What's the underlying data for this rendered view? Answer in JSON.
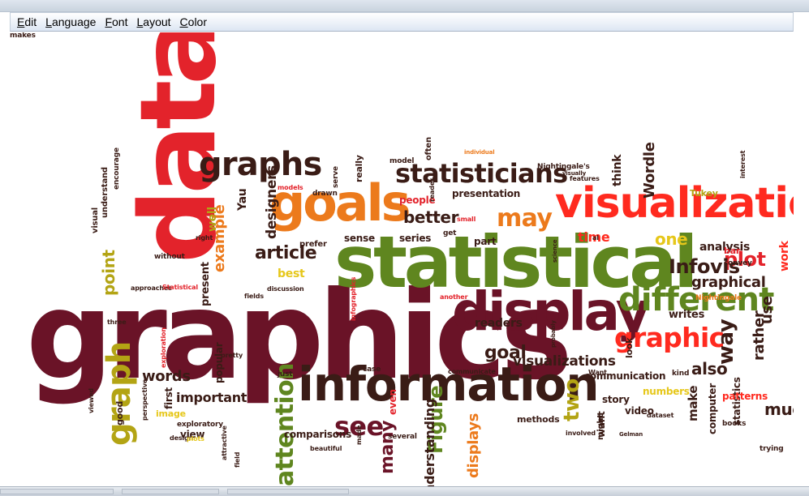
{
  "menu": [
    {
      "label": "Edit",
      "mnemonic": "E",
      "rest": "dit"
    },
    {
      "label": "Language",
      "mnemonic": "L",
      "rest": "anguage"
    },
    {
      "label": "Font",
      "mnemonic": "F",
      "rest": "ont"
    },
    {
      "label": "Layout",
      "mnemonic": "L",
      "rest": "ayout"
    },
    {
      "label": "Color",
      "mnemonic": "C",
      "rest": "olor"
    }
  ],
  "colors": {
    "red": "#e3232b",
    "orange": "#ec7a1c",
    "green": "#5f861f",
    "olive": "#b3a414",
    "dark": "#3a1c16",
    "maroon": "#6a1327",
    "brightred": "#ff2a1f",
    "yellow": "#e6c71a"
  },
  "words": [
    {
      "text": "data",
      "color": "red",
      "size": 128,
      "rot": -90
    },
    {
      "text": "graphics",
      "color": "maroon",
      "size": 150,
      "rot": 0
    },
    {
      "text": "statistical",
      "color": "green",
      "size": 88,
      "rot": 0
    },
    {
      "text": "information",
      "color": "dark",
      "size": 58,
      "rot": 0
    },
    {
      "text": "display",
      "color": "maroon",
      "size": 66,
      "rot": 0
    },
    {
      "text": "visualization",
      "color": "brightred",
      "size": 52,
      "rot": 0
    },
    {
      "text": "goals",
      "color": "orange",
      "size": 62,
      "rot": 0
    },
    {
      "text": "different",
      "color": "green",
      "size": 40,
      "rot": 0
    },
    {
      "text": "statisticians",
      "color": "dark",
      "size": 32,
      "rot": 0
    },
    {
      "text": "graphs",
      "color": "dark",
      "size": 40,
      "rot": 0
    },
    {
      "text": "graphic",
      "color": "brightred",
      "size": 33,
      "rot": 0
    },
    {
      "text": "graph",
      "color": "olive",
      "size": 40,
      "rot": -90
    },
    {
      "text": "may",
      "color": "orange",
      "size": 30,
      "rot": 0
    },
    {
      "text": "see",
      "color": "maroon",
      "size": 32,
      "rot": 0
    },
    {
      "text": "attention",
      "color": "green",
      "size": 30,
      "rot": -90
    },
    {
      "text": "Figure",
      "color": "green",
      "size": 24,
      "rot": -90
    },
    {
      "text": "plot",
      "color": "red",
      "size": 24,
      "rot": 0
    },
    {
      "text": "better",
      "color": "dark",
      "size": 20,
      "rot": 0
    },
    {
      "text": "Infovis",
      "color": "dark",
      "size": 24,
      "rot": 0
    },
    {
      "text": "article",
      "color": "dark",
      "size": 22,
      "rot": 0
    },
    {
      "text": "graphical",
      "color": "dark",
      "size": 18,
      "rot": 0
    },
    {
      "text": "goal",
      "color": "dark",
      "size": 22,
      "rot": 0
    },
    {
      "text": "way",
      "color": "dark",
      "size": 26,
      "rot": -90
    },
    {
      "text": "rather",
      "color": "dark",
      "size": 18,
      "rot": -90
    },
    {
      "text": "much",
      "color": "dark",
      "size": 20,
      "rot": 0
    },
    {
      "text": "also",
      "color": "dark",
      "size": 20,
      "rot": 0
    },
    {
      "text": "visualizations",
      "color": "dark",
      "size": 17,
      "rot": 0
    },
    {
      "text": "words",
      "color": "dark",
      "size": 18,
      "rot": 0
    },
    {
      "text": "important",
      "color": "dark",
      "size": 16,
      "rot": 0
    },
    {
      "text": "designers",
      "color": "dark",
      "size": 17,
      "rot": -90
    },
    {
      "text": "example",
      "color": "orange",
      "size": 18,
      "rot": -90
    },
    {
      "text": "point",
      "color": "olive",
      "size": 20,
      "rot": -90
    },
    {
      "text": "well",
      "color": "olive",
      "size": 14,
      "rot": -90
    },
    {
      "text": "Yau",
      "color": "dark",
      "size": 14,
      "rot": -90
    },
    {
      "text": "Wordle",
      "color": "dark",
      "size": 18,
      "rot": -90
    },
    {
      "text": "think",
      "color": "dark",
      "size": 14,
      "rot": -90
    },
    {
      "text": "time",
      "color": "brightred",
      "size": 16,
      "rot": 0
    },
    {
      "text": "one",
      "color": "yellow",
      "size": 20,
      "rot": 0
    },
    {
      "text": "analysis",
      "color": "dark",
      "size": 14,
      "rot": 0
    },
    {
      "text": "work",
      "color": "brightred",
      "size": 14,
      "rot": -90
    },
    {
      "text": "use",
      "color": "dark",
      "size": 18,
      "rot": -90
    },
    {
      "text": "best",
      "color": "yellow",
      "size": 14,
      "rot": 0
    },
    {
      "text": "present",
      "color": "dark",
      "size": 13,
      "rot": -90
    },
    {
      "text": "readers",
      "color": "dark",
      "size": 14,
      "rot": 0
    },
    {
      "text": "writes",
      "color": "dark",
      "size": 13,
      "rot": 0
    },
    {
      "text": "sense",
      "color": "dark",
      "size": 12,
      "rot": 0
    },
    {
      "text": "series",
      "color": "dark",
      "size": 12,
      "rot": 0
    },
    {
      "text": "part",
      "color": "dark",
      "size": 12,
      "rot": 0
    },
    {
      "text": "presentation",
      "color": "dark",
      "size": 12,
      "rot": 0
    },
    {
      "text": "people",
      "color": "red",
      "size": 12,
      "rot": 0
    },
    {
      "text": "two",
      "color": "olive",
      "size": 26,
      "rot": -90
    },
    {
      "text": "many",
      "color": "maroon",
      "size": 22,
      "rot": -90
    },
    {
      "text": "displays",
      "color": "orange",
      "size": 18,
      "rot": -90
    },
    {
      "text": "understanding",
      "color": "dark",
      "size": 16,
      "rot": -90
    },
    {
      "text": "communication",
      "color": "dark",
      "size": 12,
      "rot": 0
    },
    {
      "text": "make",
      "color": "dark",
      "size": 15,
      "rot": -90
    },
    {
      "text": "computer",
      "color": "dark",
      "size": 12,
      "rot": -90
    },
    {
      "text": "statistics",
      "color": "dark",
      "size": 12,
      "rot": -90
    },
    {
      "text": "patterns",
      "color": "brightred",
      "size": 12,
      "rot": 0
    },
    {
      "text": "story",
      "color": "dark",
      "size": 12,
      "rot": 0
    },
    {
      "text": "video",
      "color": "dark",
      "size": 12,
      "rot": 0
    },
    {
      "text": "numbers",
      "color": "yellow",
      "size": 12,
      "rot": 0
    },
    {
      "text": "want",
      "color": "dark",
      "size": 12,
      "rot": -90
    },
    {
      "text": "methods",
      "color": "dark",
      "size": 11,
      "rot": 0
    },
    {
      "text": "image",
      "color": "yellow",
      "size": 11,
      "rot": 0
    },
    {
      "text": "comparisons",
      "color": "dark",
      "size": 12,
      "rot": 0
    },
    {
      "text": "popular",
      "color": "dark",
      "size": 12,
      "rot": -90
    },
    {
      "text": "view",
      "color": "dark",
      "size": 12,
      "rot": 0
    },
    {
      "text": "first",
      "color": "dark",
      "size": 12,
      "rot": -90
    },
    {
      "text": "good",
      "color": "dark",
      "size": 11,
      "rot": -90
    },
    {
      "text": "visual",
      "color": "dark",
      "size": 10,
      "rot": -90
    },
    {
      "text": "understand",
      "color": "dark",
      "size": 10,
      "rot": -90
    },
    {
      "text": "encourage",
      "color": "dark",
      "size": 9,
      "rot": -90
    },
    {
      "text": "interest",
      "color": "dark",
      "size": 8,
      "rot": -90
    },
    {
      "text": "Tukey",
      "color": "olive",
      "size": 11,
      "rot": 0
    },
    {
      "text": "bar",
      "color": "red",
      "size": 11,
      "rot": 0
    },
    {
      "text": "convey",
      "color": "dark",
      "size": 9,
      "rot": 0
    },
    {
      "text": "features",
      "color": "dark",
      "size": 8,
      "rot": 0
    },
    {
      "text": "Nightingale",
      "color": "orange",
      "size": 9,
      "rot": 0
    },
    {
      "text": "Nightingale's",
      "color": "dark",
      "size": 9,
      "rot": 0
    },
    {
      "text": "prefer",
      "color": "dark",
      "size": 10,
      "rot": 0
    },
    {
      "text": "discussion",
      "color": "dark",
      "size": 8,
      "rot": 0
    },
    {
      "text": "approaches",
      "color": "dark",
      "size": 8,
      "rot": 0
    },
    {
      "text": "Statistical",
      "color": "red",
      "size": 8,
      "rot": 0
    },
    {
      "text": "without",
      "color": "dark",
      "size": 9,
      "rot": 0
    },
    {
      "text": "models",
      "color": "red",
      "size": 8,
      "rot": 0
    },
    {
      "text": "drawn",
      "color": "dark",
      "size": 9,
      "rot": 0
    },
    {
      "text": "serve",
      "color": "dark",
      "size": 9,
      "rot": -90
    },
    {
      "text": "really",
      "color": "dark",
      "size": 11,
      "rot": -90
    },
    {
      "text": "often",
      "color": "dark",
      "size": 10,
      "rot": -90
    },
    {
      "text": "model",
      "color": "dark",
      "size": 9,
      "rot": 0
    },
    {
      "text": "individual",
      "color": "orange",
      "size": 7,
      "rot": 0
    },
    {
      "text": "perspective",
      "color": "dark",
      "size": 8,
      "rot": -90
    },
    {
      "text": "exploratory",
      "color": "dark",
      "size": 9,
      "rot": 0
    },
    {
      "text": "design",
      "color": "dark",
      "size": 8,
      "rot": 0
    },
    {
      "text": "plots",
      "color": "yellow",
      "size": 8,
      "rot": 0
    },
    {
      "text": "just",
      "color": "dark",
      "size": 9,
      "rot": 0
    },
    {
      "text": "exploration",
      "color": "red",
      "size": 8,
      "rot": -90
    },
    {
      "text": "beautiful",
      "color": "dark",
      "size": 8,
      "rot": 0
    },
    {
      "text": "even",
      "color": "red",
      "size": 12,
      "rot": -90
    },
    {
      "text": "case",
      "color": "dark",
      "size": 9,
      "rot": 0
    },
    {
      "text": "several",
      "color": "dark",
      "size": 9,
      "rot": 0
    },
    {
      "text": "communicate",
      "color": "dark",
      "size": 8,
      "rot": 0
    },
    {
      "text": "made",
      "color": "dark",
      "size": 8,
      "rot": -90
    },
    {
      "text": "involved",
      "color": "dark",
      "size": 8,
      "rot": 0
    },
    {
      "text": "books",
      "color": "dark",
      "size": 9,
      "rot": 0
    },
    {
      "text": "trying",
      "color": "dark",
      "size": 9,
      "rot": 0
    },
    {
      "text": "look",
      "color": "dark",
      "size": 11,
      "rot": -90
    },
    {
      "text": "kind",
      "color": "dark",
      "size": 9,
      "rot": 0
    },
    {
      "text": "dataset",
      "color": "dark",
      "size": 8,
      "rot": 0
    },
    {
      "text": "Gelman",
      "color": "dark",
      "size": 7,
      "rot": 0
    },
    {
      "text": "might",
      "color": "dark",
      "size": 10,
      "rot": -90
    },
    {
      "text": "infographics",
      "color": "red",
      "size": 8,
      "rot": -90
    },
    {
      "text": "another",
      "color": "red",
      "size": 8,
      "rot": 0
    },
    {
      "text": "three",
      "color": "dark",
      "size": 8,
      "rot": 0
    },
    {
      "text": "pretty",
      "color": "dark",
      "size": 8,
      "rot": 0
    },
    {
      "text": "field",
      "color": "dark",
      "size": 8,
      "rot": -90
    },
    {
      "text": "attractive",
      "color": "dark",
      "size": 8,
      "rot": -90
    },
    {
      "text": "viewed",
      "color": "dark",
      "size": 8,
      "rot": -90
    },
    {
      "text": "reader",
      "color": "dark",
      "size": 8,
      "rot": -90
    },
    {
      "text": "get",
      "color": "dark",
      "size": 9,
      "rot": 0
    },
    {
      "text": "small",
      "color": "red",
      "size": 8,
      "rot": 0
    },
    {
      "text": "visually",
      "color": "dark",
      "size": 7,
      "rot": 0
    },
    {
      "text": "Want",
      "color": "dark",
      "size": 8,
      "rot": 0
    },
    {
      "text": "science",
      "color": "dark",
      "size": 7,
      "rot": -90
    },
    {
      "text": "al",
      "color": "dark",
      "size": 8,
      "rot": 0
    },
    {
      "text": "right",
      "color": "dark",
      "size": 8,
      "rot": 0
    },
    {
      "text": "fields",
      "color": "dark",
      "size": 8,
      "rot": 0
    },
    {
      "text": "probably",
      "color": "dark",
      "size": 7,
      "rot": -90
    },
    {
      "text": "makes",
      "color": "dark",
      "size": 9,
      "rot": 0
    }
  ]
}
